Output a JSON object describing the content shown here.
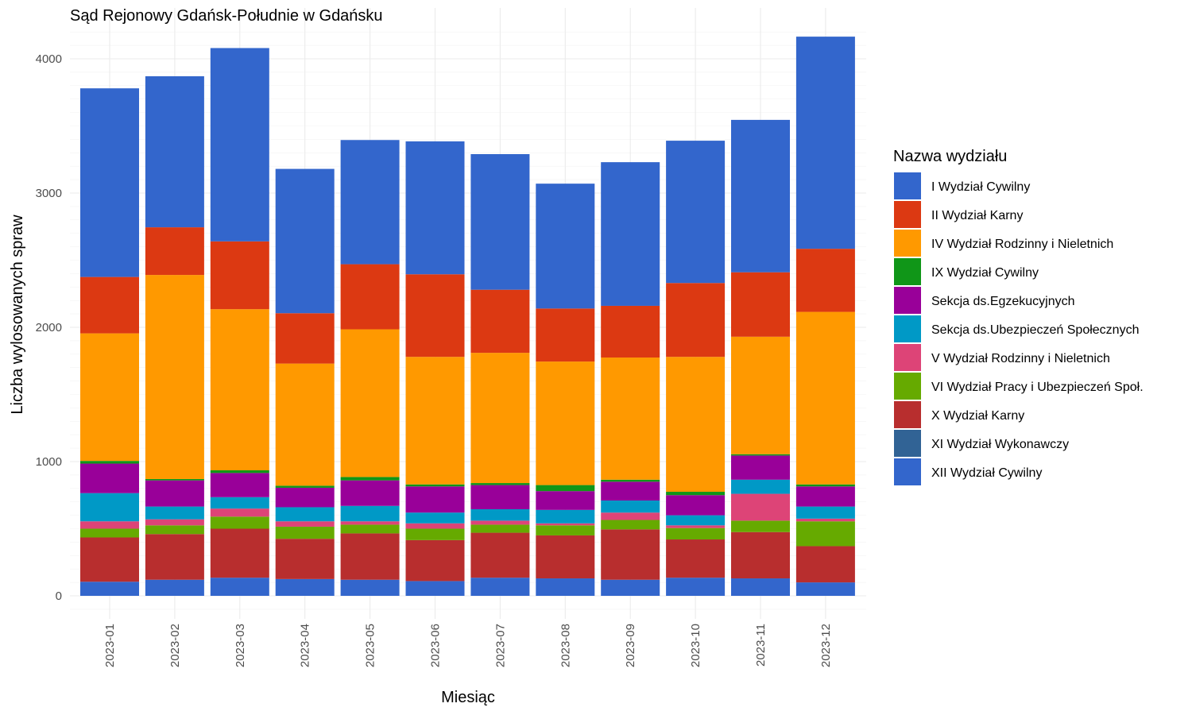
{
  "chart_data": {
    "type": "bar",
    "stacked": true,
    "title": "Sąd Rejonowy Gdańsk-Południe w Gdańsku",
    "xlabel": "Miesiąc",
    "ylabel": "Liczba wylosowanych spraw",
    "ylim": [
      0,
      4200
    ],
    "yticks": [
      0,
      1000,
      2000,
      3000,
      4000
    ],
    "grid": true,
    "legend": {
      "title": "Nazwa wydziału",
      "position": "right"
    },
    "categories": [
      "2023-01",
      "2023-02",
      "2023-03",
      "2023-04",
      "2023-05",
      "2023-06",
      "2023-07",
      "2023-08",
      "2023-09",
      "2023-10",
      "2023-11",
      "2023-12"
    ],
    "stack_order_bottom_to_top": [
      "XII Wydział Cywilny",
      "X Wydział Karny",
      "VI Wydział Pracy i Ubezpieczeń Społ.",
      "V Wydział Rodzinny i Nieletnich",
      "Sekcja ds.Ubezpieczeń Społecznych",
      "Sekcja ds.Egzekucyjnych",
      "IX Wydział Cywilny",
      "IV Wydział Rodzinny i Nieletnich",
      "II Wydział Karny",
      "I Wydział Cywilny",
      "XI Wydział Wykonawczy"
    ],
    "series": [
      {
        "name": "I Wydział Cywilny",
        "color": "#3366CC",
        "values": [
          1405,
          1125,
          1440,
          1075,
          925,
          990,
          1010,
          930,
          1070,
          1060,
          1135,
          1580
        ]
      },
      {
        "name": "II Wydział Karny",
        "color": "#DC3912",
        "values": [
          420,
          355,
          505,
          375,
          485,
          615,
          470,
          395,
          385,
          550,
          480,
          470
        ]
      },
      {
        "name": "IV Wydział Rodzinny i Nieletnich",
        "color": "#FF9900",
        "values": [
          950,
          1520,
          1200,
          910,
          1100,
          950,
          970,
          920,
          910,
          1005,
          875,
          1285
        ]
      },
      {
        "name": "IX Wydział Cywilny",
        "color": "#109618",
        "values": [
          20,
          10,
          20,
          15,
          25,
          15,
          15,
          45,
          15,
          25,
          10,
          15
        ]
      },
      {
        "name": "Sekcja ds.Egzekucyjnych",
        "color": "#990099",
        "values": [
          220,
          195,
          180,
          145,
          190,
          195,
          180,
          140,
          140,
          150,
          180,
          150
        ]
      },
      {
        "name": "Sekcja ds.Ubezpieczeń Społecznych",
        "color": "#0099C6",
        "values": [
          210,
          95,
          85,
          105,
          115,
          80,
          85,
          100,
          90,
          75,
          105,
          90
        ]
      },
      {
        "name": "V Wydział Rodzinny i Nieletnich",
        "color": "#DD4477",
        "values": [
          55,
          45,
          60,
          40,
          25,
          40,
          30,
          15,
          55,
          20,
          200,
          20
        ]
      },
      {
        "name": "VI Wydział Pracy i Ubezpieczeń Społ.",
        "color": "#66AA00",
        "values": [
          65,
          65,
          90,
          90,
          65,
          85,
          60,
          75,
          70,
          85,
          85,
          185
        ]
      },
      {
        "name": "X Wydział Karny",
        "color": "#B82E2E",
        "values": [
          330,
          340,
          365,
          300,
          345,
          305,
          335,
          320,
          375,
          285,
          345,
          270
        ]
      },
      {
        "name": "XI Wydział Wykonawczy",
        "color": "#316395",
        "values": [
          0,
          0,
          0,
          0,
          0,
          0,
          0,
          0,
          0,
          0,
          0,
          0
        ]
      },
      {
        "name": "XII Wydział Cywilny",
        "color": "#3366CC",
        "values": [
          105,
          120,
          135,
          125,
          120,
          110,
          135,
          130,
          120,
          135,
          130,
          100
        ]
      }
    ]
  }
}
